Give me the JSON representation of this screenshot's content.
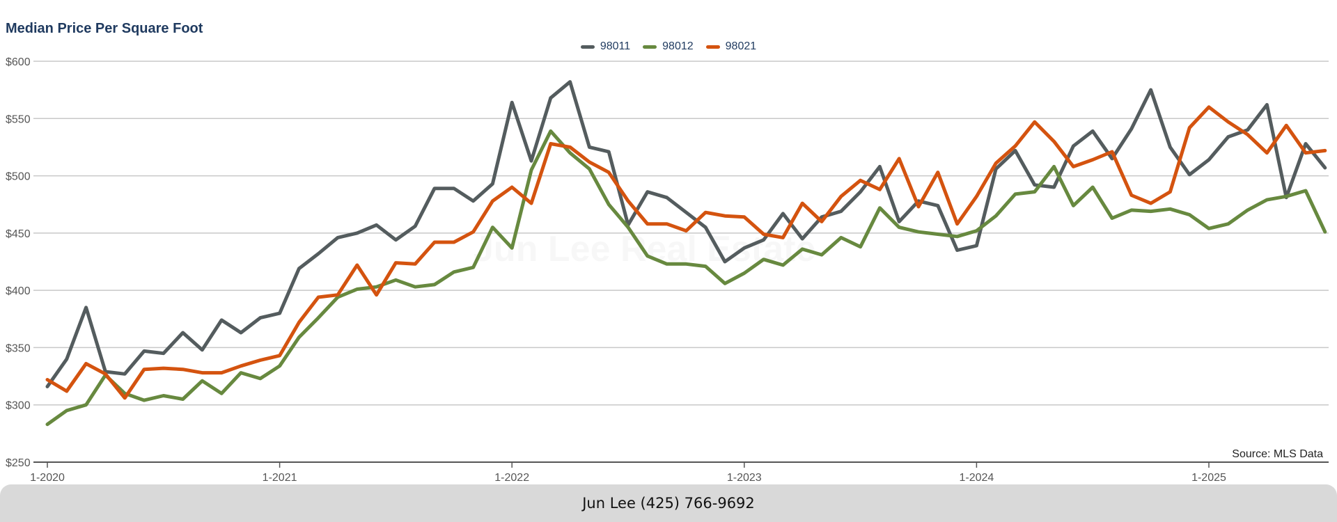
{
  "chart_data": {
    "type": "line",
    "title": "Median Price Per Square Foot",
    "source": "Source: MLS Data",
    "watermark": "Jun Lee Real Estate",
    "footer": "Jun Lee (425) 766-9692",
    "ylim": [
      250,
      600
    ],
    "yticks": [
      250,
      300,
      350,
      400,
      450,
      500,
      550,
      600
    ],
    "ytick_labels": [
      "$250",
      "$300",
      "$350",
      "$400",
      "$450",
      "$500",
      "$550",
      "$600"
    ],
    "xtick_labels": [
      "1-2020",
      "1-2021",
      "1-2022",
      "1-2023",
      "1-2024",
      "1-2025"
    ],
    "start": "2020-01",
    "legend_position": "top-center",
    "grid": true,
    "series": [
      {
        "name": "98011",
        "color": "#545c5e",
        "values": [
          316,
          340,
          385,
          329,
          327,
          347,
          345,
          363,
          348,
          374,
          363,
          376,
          380,
          419,
          432,
          446,
          450,
          457,
          444,
          456,
          489,
          489,
          478,
          493,
          564,
          513,
          568,
          582,
          525,
          521,
          457,
          486,
          481,
          468,
          455,
          425,
          437,
          444,
          467,
          445,
          464,
          469,
          486,
          508,
          460,
          478,
          474,
          435,
          439,
          506,
          522,
          492,
          490,
          526,
          539,
          515,
          541,
          575,
          525,
          501,
          514,
          534,
          540,
          562,
          481,
          528,
          507
        ]
      },
      {
        "name": "98012",
        "color": "#67893f",
        "values": [
          283,
          295,
          300,
          326,
          310,
          304,
          308,
          305,
          321,
          310,
          328,
          323,
          334,
          359,
          376,
          394,
          401,
          403,
          409,
          403,
          405,
          416,
          420,
          455,
          437,
          505,
          539,
          520,
          506,
          475,
          455,
          430,
          423,
          423,
          421,
          406,
          415,
          427,
          422,
          436,
          431,
          446,
          438,
          472,
          455,
          451,
          449,
          447,
          452,
          465,
          484,
          486,
          508,
          474,
          490,
          463,
          470,
          469,
          471,
          466,
          454,
          458,
          470,
          479,
          482,
          487,
          451
        ]
      },
      {
        "name": "98021",
        "color": "#d4530f",
        "values": [
          322,
          312,
          336,
          327,
          306,
          331,
          332,
          331,
          328,
          328,
          334,
          339,
          343,
          372,
          394,
          396,
          422,
          396,
          424,
          423,
          442,
          442,
          451,
          478,
          490,
          476,
          528,
          525,
          512,
          503,
          478,
          458,
          458,
          452,
          468,
          465,
          464,
          449,
          446,
          476,
          460,
          482,
          496,
          488,
          515,
          473,
          503,
          458,
          482,
          511,
          526,
          547,
          530,
          508,
          514,
          521,
          483,
          476,
          486,
          542,
          560,
          547,
          536,
          520,
          544,
          520,
          522
        ]
      }
    ]
  }
}
